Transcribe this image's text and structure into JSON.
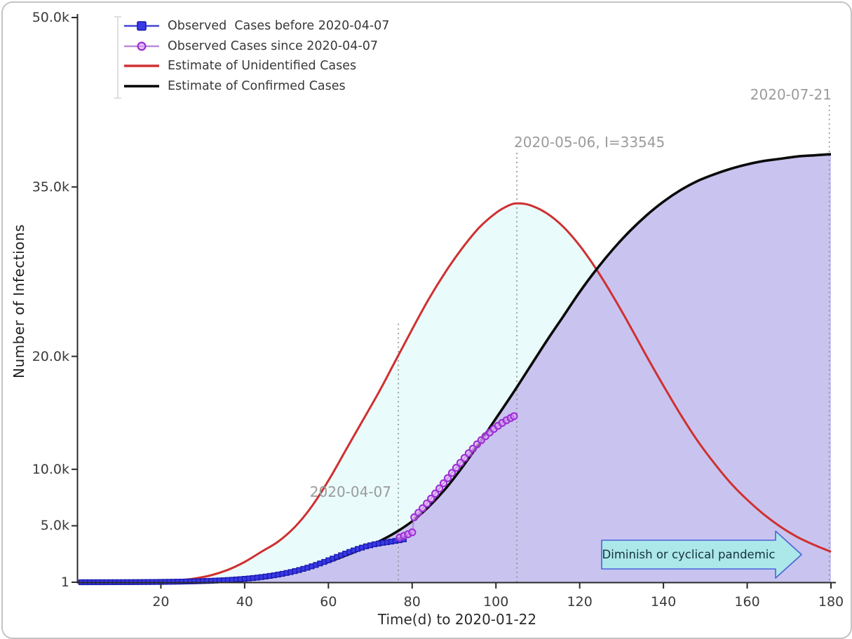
{
  "figure": {
    "background": "#ffffff",
    "border_color": "#c4c4c4"
  },
  "chart_data": {
    "type": "line",
    "title": "",
    "xlabel": "Time(d) to 2020-01-22",
    "ylabel": "Number of Infections",
    "xlim": [
      0,
      183
    ],
    "ylim": [
      1,
      50000
    ],
    "grid": false,
    "legend_position": "upper-left",
    "x_ticks": [
      {
        "t": 20,
        "label": "20"
      },
      {
        "t": 40,
        "label": "40"
      },
      {
        "t": 60,
        "label": "60"
      },
      {
        "t": 80,
        "label": "80"
      },
      {
        "t": 100,
        "label": "100"
      },
      {
        "t": 120,
        "label": "120"
      },
      {
        "t": 140,
        "label": "140"
      },
      {
        "t": 160,
        "label": "160"
      },
      {
        "t": 180,
        "label": "180"
      }
    ],
    "y_ticks": [
      {
        "v": 1,
        "label": "1"
      },
      {
        "v": 5000,
        "label": "5.0k"
      },
      {
        "v": 10000,
        "label": "10.0k"
      },
      {
        "v": 20000,
        "label": "20.0k"
      },
      {
        "v": 35000,
        "label": "35.0k"
      },
      {
        "v": 50000,
        "label": "50.0k"
      }
    ],
    "series": [
      {
        "name": "Observed  Cases before 2020-04-07",
        "type": "scatter-line",
        "marker": "square",
        "line_color": "#4343cf",
        "marker_fill": "#3939e6",
        "marker_edge": "#1b1bb0",
        "densify": 1,
        "points": [
          [
            1,
            1
          ],
          [
            3,
            1
          ],
          [
            5,
            2
          ],
          [
            7,
            3
          ],
          [
            9,
            5
          ],
          [
            11,
            7
          ],
          [
            13,
            10
          ],
          [
            15,
            14
          ],
          [
            17,
            19
          ],
          [
            19,
            26
          ],
          [
            21,
            34
          ],
          [
            23,
            44
          ],
          [
            25,
            57
          ],
          [
            27,
            73
          ],
          [
            29,
            92
          ],
          [
            31,
            115
          ],
          [
            33,
            143
          ],
          [
            35,
            178
          ],
          [
            37,
            220
          ],
          [
            39,
            272
          ],
          [
            41,
            335
          ],
          [
            43,
            412
          ],
          [
            45,
            505
          ],
          [
            47,
            615
          ],
          [
            49,
            745
          ],
          [
            51,
            900
          ],
          [
            53,
            1080
          ],
          [
            55,
            1290
          ],
          [
            57,
            1530
          ],
          [
            59,
            1800
          ],
          [
            61,
            2090
          ],
          [
            63,
            2390
          ],
          [
            65,
            2680
          ],
          [
            67,
            2950
          ],
          [
            69,
            3180
          ],
          [
            71,
            3360
          ],
          [
            73,
            3490
          ],
          [
            75,
            3600
          ],
          [
            77,
            3720
          ],
          [
            78,
            3800
          ]
        ]
      },
      {
        "name": "Observed Cases since 2020-04-07",
        "type": "scatter-line",
        "marker": "circle",
        "line_color": "#bb8cdb",
        "marker_fill": "#dc9ff5",
        "marker_edge": "#9c2fd4",
        "points": [
          [
            77,
            3950
          ],
          [
            78,
            4100
          ],
          [
            79,
            4250
          ],
          [
            80,
            4420
          ],
          [
            80.5,
            5750
          ],
          [
            81.5,
            6150
          ],
          [
            82.5,
            6550
          ],
          [
            83.5,
            6970
          ],
          [
            84.5,
            7400
          ],
          [
            85.5,
            7850
          ],
          [
            86.5,
            8300
          ],
          [
            87.5,
            8760
          ],
          [
            88.5,
            9220
          ],
          [
            89.5,
            9680
          ],
          [
            90.5,
            10130
          ],
          [
            91.5,
            10570
          ],
          [
            92.5,
            11000
          ],
          [
            93.5,
            11420
          ],
          [
            94.5,
            11820
          ],
          [
            95.5,
            12210
          ],
          [
            96.5,
            12580
          ],
          [
            97.5,
            12930
          ],
          [
            98.5,
            13260
          ],
          [
            99.5,
            13570
          ],
          [
            100.5,
            13850
          ],
          [
            101.5,
            14110
          ],
          [
            102.5,
            14340
          ],
          [
            103.5,
            14540
          ],
          [
            104.3,
            14700
          ]
        ]
      },
      {
        "name": "Estimate of Unidentified Cases",
        "type": "line",
        "line_color": "#cf3030",
        "line_width": 3,
        "points": [
          [
            0,
            1
          ],
          [
            8,
            5
          ],
          [
            14,
            25
          ],
          [
            20,
            80
          ],
          [
            24,
            170
          ],
          [
            28,
            330
          ],
          [
            32,
            620
          ],
          [
            36,
            1100
          ],
          [
            40,
            1800
          ],
          [
            44,
            2700
          ],
          [
            48,
            3600
          ],
          [
            52,
            4900
          ],
          [
            56,
            6700
          ],
          [
            60,
            9000
          ],
          [
            64,
            11600
          ],
          [
            68,
            14200
          ],
          [
            72,
            16800
          ],
          [
            76,
            19600
          ],
          [
            80,
            22400
          ],
          [
            84,
            25100
          ],
          [
            88,
            27500
          ],
          [
            92,
            29600
          ],
          [
            96,
            31400
          ],
          [
            100,
            32700
          ],
          [
            103,
            33350
          ],
          [
            105,
            33545
          ],
          [
            108,
            33400
          ],
          [
            112,
            32700
          ],
          [
            116,
            31500
          ],
          [
            120,
            29800
          ],
          [
            124,
            27700
          ],
          [
            128,
            25300
          ],
          [
            132,
            22700
          ],
          [
            136,
            20000
          ],
          [
            140,
            17400
          ],
          [
            144,
            14900
          ],
          [
            148,
            12600
          ],
          [
            152,
            10600
          ],
          [
            156,
            8800
          ],
          [
            160,
            7300
          ],
          [
            164,
            6000
          ],
          [
            168,
            4900
          ],
          [
            172,
            4000
          ],
          [
            176,
            3300
          ],
          [
            180,
            2700
          ]
        ]
      },
      {
        "name": "Estimate of Confirmed Cases",
        "type": "line",
        "line_color": "#0a0a0a",
        "line_width": 3.6,
        "points": [
          [
            0,
            1
          ],
          [
            10,
            4
          ],
          [
            16,
            12
          ],
          [
            20,
            25
          ],
          [
            24,
            45
          ],
          [
            28,
            80
          ],
          [
            32,
            135
          ],
          [
            36,
            220
          ],
          [
            40,
            340
          ],
          [
            44,
            510
          ],
          [
            48,
            730
          ],
          [
            52,
            1010
          ],
          [
            56,
            1380
          ],
          [
            60,
            1800
          ],
          [
            64,
            2350
          ],
          [
            68,
            2950
          ],
          [
            72,
            3600
          ],
          [
            76,
            4400
          ],
          [
            80,
            5400
          ],
          [
            84,
            6700
          ],
          [
            88,
            8300
          ],
          [
            92,
            10200
          ],
          [
            96,
            12300
          ],
          [
            100,
            14500
          ],
          [
            104,
            16700
          ],
          [
            108,
            19000
          ],
          [
            112,
            21300
          ],
          [
            116,
            23500
          ],
          [
            120,
            25700
          ],
          [
            124,
            27700
          ],
          [
            128,
            29500
          ],
          [
            132,
            31100
          ],
          [
            136,
            32500
          ],
          [
            140,
            33700
          ],
          [
            144,
            34700
          ],
          [
            148,
            35500
          ],
          [
            152,
            36100
          ],
          [
            156,
            36600
          ],
          [
            160,
            37000
          ],
          [
            164,
            37300
          ],
          [
            168,
            37500
          ],
          [
            172,
            37700
          ],
          [
            176,
            37800
          ],
          [
            180,
            37900
          ]
        ]
      }
    ],
    "fills": [
      {
        "name": "between-unidentified-and-confirmed",
        "color": "#e9fbfa",
        "upper": "Estimate of Unidentified Cases",
        "lower": "Estimate of Confirmed Cases"
      },
      {
        "name": "under-confirmed",
        "color": "#c9c4ef",
        "series": "Estimate of Confirmed Cases"
      }
    ],
    "annotations": [
      {
        "text": "2020-04-07",
        "day": 76.7
      },
      {
        "text": "2020-05-06, I=33545",
        "day": 105,
        "peak_value": 33545
      },
      {
        "text": "2020-07-21",
        "day": 179.6
      }
    ],
    "arrow_label": "Diminish or cyclical pandemic",
    "arrow_fill": "#ace7e9",
    "arrow_stroke": "#4a62d8"
  },
  "legend": {
    "entries": [
      {
        "label": "Observed  Cases before 2020-04-07",
        "line_color": "#4343cf",
        "marker": "square",
        "marker_fill": "#3939e6",
        "marker_edge": "#1b1bb0"
      },
      {
        "label": "Observed Cases since 2020-04-07",
        "line_color": "#bb8cdb",
        "marker": "circle",
        "marker_fill": "#dc9ff5",
        "marker_edge": "#9c2fd4"
      },
      {
        "label": "Estimate of Unidentified Cases",
        "line_color": "#cf3333",
        "marker": "none"
      },
      {
        "label": "Estimate of Confirmed Cases",
        "line_color": "#000000",
        "marker": "none"
      }
    ]
  }
}
